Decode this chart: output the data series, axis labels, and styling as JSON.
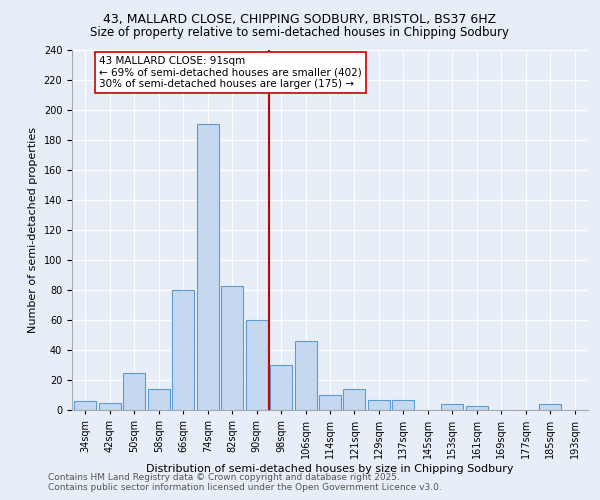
{
  "title": "43, MALLARD CLOSE, CHIPPING SODBURY, BRISTOL, BS37 6HZ",
  "subtitle": "Size of property relative to semi-detached houses in Chipping Sodbury",
  "xlabel": "Distribution of semi-detached houses by size in Chipping Sodbury",
  "ylabel": "Number of semi-detached properties",
  "footer_line1": "Contains HM Land Registry data © Crown copyright and database right 2025.",
  "footer_line2": "Contains public sector information licensed under the Open Government Licence v3.0.",
  "categories": [
    "34sqm",
    "42sqm",
    "50sqm",
    "58sqm",
    "66sqm",
    "74sqm",
    "82sqm",
    "90sqm",
    "98sqm",
    "106sqm",
    "114sqm",
    "121sqm",
    "129sqm",
    "137sqm",
    "145sqm",
    "153sqm",
    "161sqm",
    "169sqm",
    "177sqm",
    "185sqm",
    "193sqm"
  ],
  "values": [
    6,
    5,
    25,
    14,
    80,
    191,
    83,
    60,
    30,
    46,
    10,
    14,
    7,
    7,
    0,
    4,
    3,
    0,
    0,
    4,
    0
  ],
  "bar_color": "#c5d8f0",
  "bar_edge_color": "#5b9bd5",
  "property_line_x": 7.5,
  "annotation_text_line1": "43 MALLARD CLOSE: 91sqm",
  "annotation_text_line2": "← 69% of semi-detached houses are smaller (402)",
  "annotation_text_line3": "30% of semi-detached houses are larger (175) →",
  "vline_color": "#cc0000",
  "background_color": "#e8eef8",
  "plot_bg_color": "#e8eef8",
  "ylim": [
    0,
    240
  ],
  "yticks": [
    0,
    20,
    40,
    60,
    80,
    100,
    120,
    140,
    160,
    180,
    200,
    220,
    240
  ],
  "title_fontsize": 9,
  "subtitle_fontsize": 8.5,
  "axis_label_fontsize": 8,
  "tick_fontsize": 7,
  "footer_fontsize": 6.5,
  "annotation_fontsize": 7.5
}
